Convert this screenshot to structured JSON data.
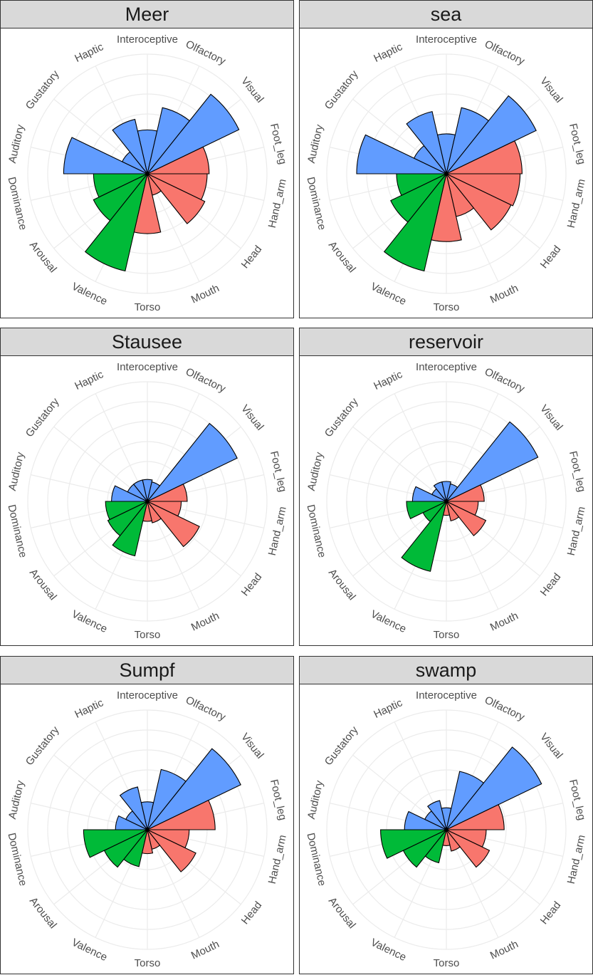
{
  "chart_data": [
    {
      "type": "polar-bar",
      "title": "Meer",
      "categories": [
        "Interoceptive",
        "Olfactory",
        "Visual",
        "Foot_leg",
        "Hand_arm",
        "Head",
        "Mouth",
        "Torso",
        "Valence",
        "Arousal",
        "Dominance",
        "Auditory",
        "Gustatory",
        "Haptic"
      ],
      "values": [
        2.2,
        3.4,
        5.1,
        3.1,
        3.0,
        3.2,
        1.1,
        3.0,
        5.0,
        3.0,
        2.7,
        4.2,
        1.4,
        2.8
      ],
      "colors": [
        "#619CFF",
        "#619CFF",
        "#619CFF",
        "#F8766D",
        "#F8766D",
        "#F8766D",
        "#F8766D",
        "#F8766D",
        "#00BA38",
        "#00BA38",
        "#00BA38",
        "#619CFF",
        "#619CFF",
        "#619CFF"
      ],
      "ylim": [
        0,
        6
      ]
    },
    {
      "type": "polar-bar",
      "title": "sea",
      "categories": [
        "Interoceptive",
        "Olfactory",
        "Visual",
        "Foot_leg",
        "Hand_arm",
        "Head",
        "Mouth",
        "Torso",
        "Valence",
        "Arousal",
        "Dominance",
        "Auditory",
        "Gustatory",
        "Haptic"
      ],
      "values": [
        2.0,
        3.4,
        5.0,
        3.8,
        3.7,
        3.6,
        2.2,
        3.4,
        5.0,
        3.1,
        2.5,
        4.5,
        1.8,
        3.2
      ],
      "colors": [
        "#619CFF",
        "#619CFF",
        "#619CFF",
        "#F8766D",
        "#F8766D",
        "#F8766D",
        "#F8766D",
        "#F8766D",
        "#00BA38",
        "#00BA38",
        "#00BA38",
        "#619CFF",
        "#619CFF",
        "#619CFF"
      ],
      "ylim": [
        0,
        6
      ]
    },
    {
      "type": "polar-bar",
      "title": "Stausee",
      "categories": [
        "Interoceptive",
        "Olfactory",
        "Visual",
        "Foot_leg",
        "Hand_arm",
        "Head",
        "Mouth",
        "Torso",
        "Valence",
        "Arousal",
        "Dominance",
        "Auditory",
        "Gustatory",
        "Haptic"
      ],
      "values": [
        1.1,
        1.0,
        5.0,
        2.0,
        1.7,
        2.9,
        1.1,
        1.0,
        2.8,
        2.2,
        2.1,
        1.8,
        1.1,
        1.1
      ],
      "colors": [
        "#619CFF",
        "#619CFF",
        "#619CFF",
        "#F8766D",
        "#F8766D",
        "#F8766D",
        "#F8766D",
        "#F8766D",
        "#00BA38",
        "#00BA38",
        "#00BA38",
        "#619CFF",
        "#619CFF",
        "#619CFF"
      ],
      "ylim": [
        0,
        6
      ]
    },
    {
      "type": "polar-bar",
      "title": "reservoir",
      "categories": [
        "Interoceptive",
        "Olfactory",
        "Visual",
        "Foot_leg",
        "Hand_arm",
        "Head",
        "Mouth",
        "Torso",
        "Valence",
        "Arousal",
        "Dominance",
        "Auditory",
        "Gustatory",
        "Haptic"
      ],
      "values": [
        1.0,
        0.9,
        5.1,
        1.9,
        1.6,
        2.2,
        1.0,
        0.7,
        3.6,
        1.3,
        2.0,
        1.7,
        0.8,
        1.0
      ],
      "colors": [
        "#619CFF",
        "#619CFF",
        "#619CFF",
        "#F8766D",
        "#F8766D",
        "#F8766D",
        "#F8766D",
        "#F8766D",
        "#00BA38",
        "#00BA38",
        "#00BA38",
        "#619CFF",
        "#619CFF",
        "#619CFF"
      ],
      "ylim": [
        0,
        6
      ]
    },
    {
      "type": "polar-bar",
      "title": "Sumpf",
      "categories": [
        "Interoceptive",
        "Olfactory",
        "Visual",
        "Foot_leg",
        "Hand_arm",
        "Head",
        "Mouth",
        "Torso",
        "Valence",
        "Arousal",
        "Dominance",
        "Auditory",
        "Gustatory",
        "Haptic"
      ],
      "values": [
        1.4,
        3.1,
        5.2,
        3.4,
        2.1,
        2.7,
        1.0,
        1.2,
        1.9,
        2.4,
        3.2,
        1.6,
        1.2,
        2.2
      ],
      "colors": [
        "#619CFF",
        "#619CFF",
        "#619CFF",
        "#F8766D",
        "#F8766D",
        "#F8766D",
        "#F8766D",
        "#F8766D",
        "#00BA38",
        "#00BA38",
        "#00BA38",
        "#619CFF",
        "#619CFF",
        "#619CFF"
      ],
      "ylim": [
        0,
        6
      ]
    },
    {
      "type": "polar-bar",
      "title": "swamp",
      "categories": [
        "Interoceptive",
        "Olfactory",
        "Visual",
        "Foot_leg",
        "Hand_arm",
        "Head",
        "Mouth",
        "Torso",
        "Valence",
        "Arousal",
        "Dominance",
        "Auditory",
        "Gustatory",
        "Haptic"
      ],
      "values": [
        1.1,
        3.0,
        5.3,
        2.9,
        2.0,
        2.4,
        1.1,
        0.8,
        1.7,
        2.4,
        3.3,
        2.1,
        1.2,
        1.5
      ],
      "colors": [
        "#619CFF",
        "#619CFF",
        "#619CFF",
        "#F8766D",
        "#F8766D",
        "#F8766D",
        "#F8766D",
        "#F8766D",
        "#00BA38",
        "#00BA38",
        "#00BA38",
        "#619CFF",
        "#619CFF",
        "#619CFF"
      ],
      "ylim": [
        0,
        6
      ]
    }
  ]
}
